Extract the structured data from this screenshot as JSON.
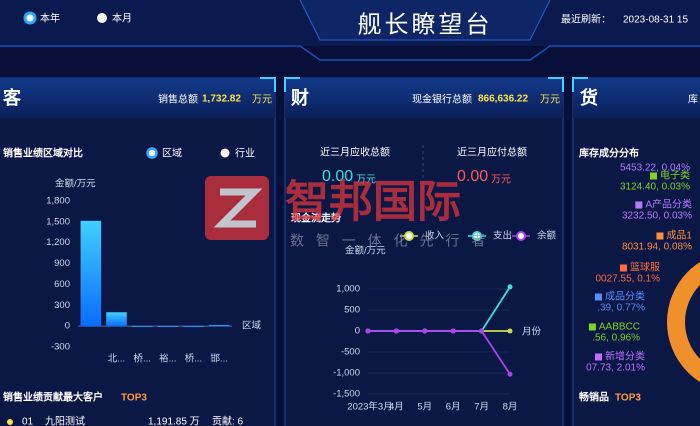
{
  "header": {
    "period_options": [
      "本年",
      "本月"
    ],
    "title": "舰长瞭望台",
    "refresh_label": "最近刷新：",
    "refresh_time": "2023-08-31 15"
  },
  "watermark": {
    "name": "智邦国际",
    "slogan": "数 智 一 体 化 先 行 者"
  },
  "customer": {
    "title": "客",
    "total_label": "销售总额",
    "total": "1,732.82",
    "unit": "万元",
    "section": "销售业绩区域对比",
    "options": [
      "区域",
      "行业"
    ],
    "chart": {
      "type": "bar",
      "y_label": "金额/万元",
      "x_label": "区域",
      "categories": [
        null,
        "北...",
        "桥...",
        "裕...",
        "桥...",
        "邯..."
      ],
      "values": [
        1515,
        200,
        0,
        0,
        0,
        15
      ],
      "color": "#1e9bff",
      "ylim": [
        -300,
        1800
      ],
      "yticks": [
        -300,
        0,
        300,
        600,
        900,
        {
          "value": 1200,
          "label": "1,200"
        },
        {
          "value": 1500,
          "label": "1,500"
        },
        {
          "value": 1800,
          "label": "1,800"
        }
      ],
      "grid": false
    },
    "top_title": "销售业绩贡献最大客户",
    "top_suffix": "TOP3",
    "top_row": [
      "01",
      "九阳测试",
      "1,191.85 万",
      "贡献: 6"
    ]
  },
  "finance": {
    "title": "财",
    "total_label": "现金银行总额",
    "total": "866,636.22",
    "unit": "万元",
    "receivable_label": "近三月应收总额",
    "receivable": "0.00",
    "receivable_unit": "万元",
    "payable_label": "近三月应付总额",
    "payable": "0.00",
    "payable_unit": "万元",
    "chart": {
      "type": "line",
      "title": "现金流走势",
      "y_label": "金额/万元",
      "x_label": "月份",
      "categories": [
        "2023年3月",
        "4月",
        "5月",
        "6月",
        "7月",
        "8月"
      ],
      "series": [
        {
          "name": "收入",
          "color": "#c6e04a",
          "values": [
            0,
            0,
            0,
            0,
            0,
            0
          ]
        },
        {
          "name": "支出",
          "color": "#3de0e0",
          "values": [
            0,
            0,
            0,
            0,
            0,
            1050
          ]
        },
        {
          "name": "余额",
          "color": "#b040f0",
          "values": [
            0,
            0,
            0,
            0,
            0,
            -1030
          ]
        }
      ],
      "ylim": [
        -1500,
        1000
      ],
      "yticks": [
        {
          "value": -1500,
          "label": "-1,500"
        },
        {
          "value": -1000,
          "label": "-1,000"
        },
        -500,
        0,
        500,
        {
          "value": 1000,
          "label": "1,000"
        }
      ],
      "grid": true
    }
  },
  "goods": {
    "title": "货",
    "total_label": "库",
    "section": "库存成分分布",
    "first_value": "5453.22, 0.04%",
    "items": [
      {
        "name": "电子类",
        "text": "3124.40, 0.03%",
        "color": "#7ed321"
      },
      {
        "name": "A产品分类",
        "text": "3232.50, 0.03%",
        "color": "#b57bff"
      },
      {
        "name": "成品1",
        "text": "8031.94, 0.08%",
        "color": "#ff8c3a"
      },
      {
        "name": "篮球服",
        "text": "0027.55, 0.1%",
        "color": "#ff6a3a"
      },
      {
        "name": "成品分类",
        "text": ".39, 0.77%",
        "color": "#5b8cff"
      },
      {
        "name": "AABBCC",
        "text": ".56, 0.96%",
        "color": "#7ed321"
      },
      {
        "name": "新增分类",
        "text": "07.73, 2.01%",
        "color": "#c070ff"
      }
    ],
    "top_title": "畅销品",
    "top_suffix": "TOP3"
  }
}
